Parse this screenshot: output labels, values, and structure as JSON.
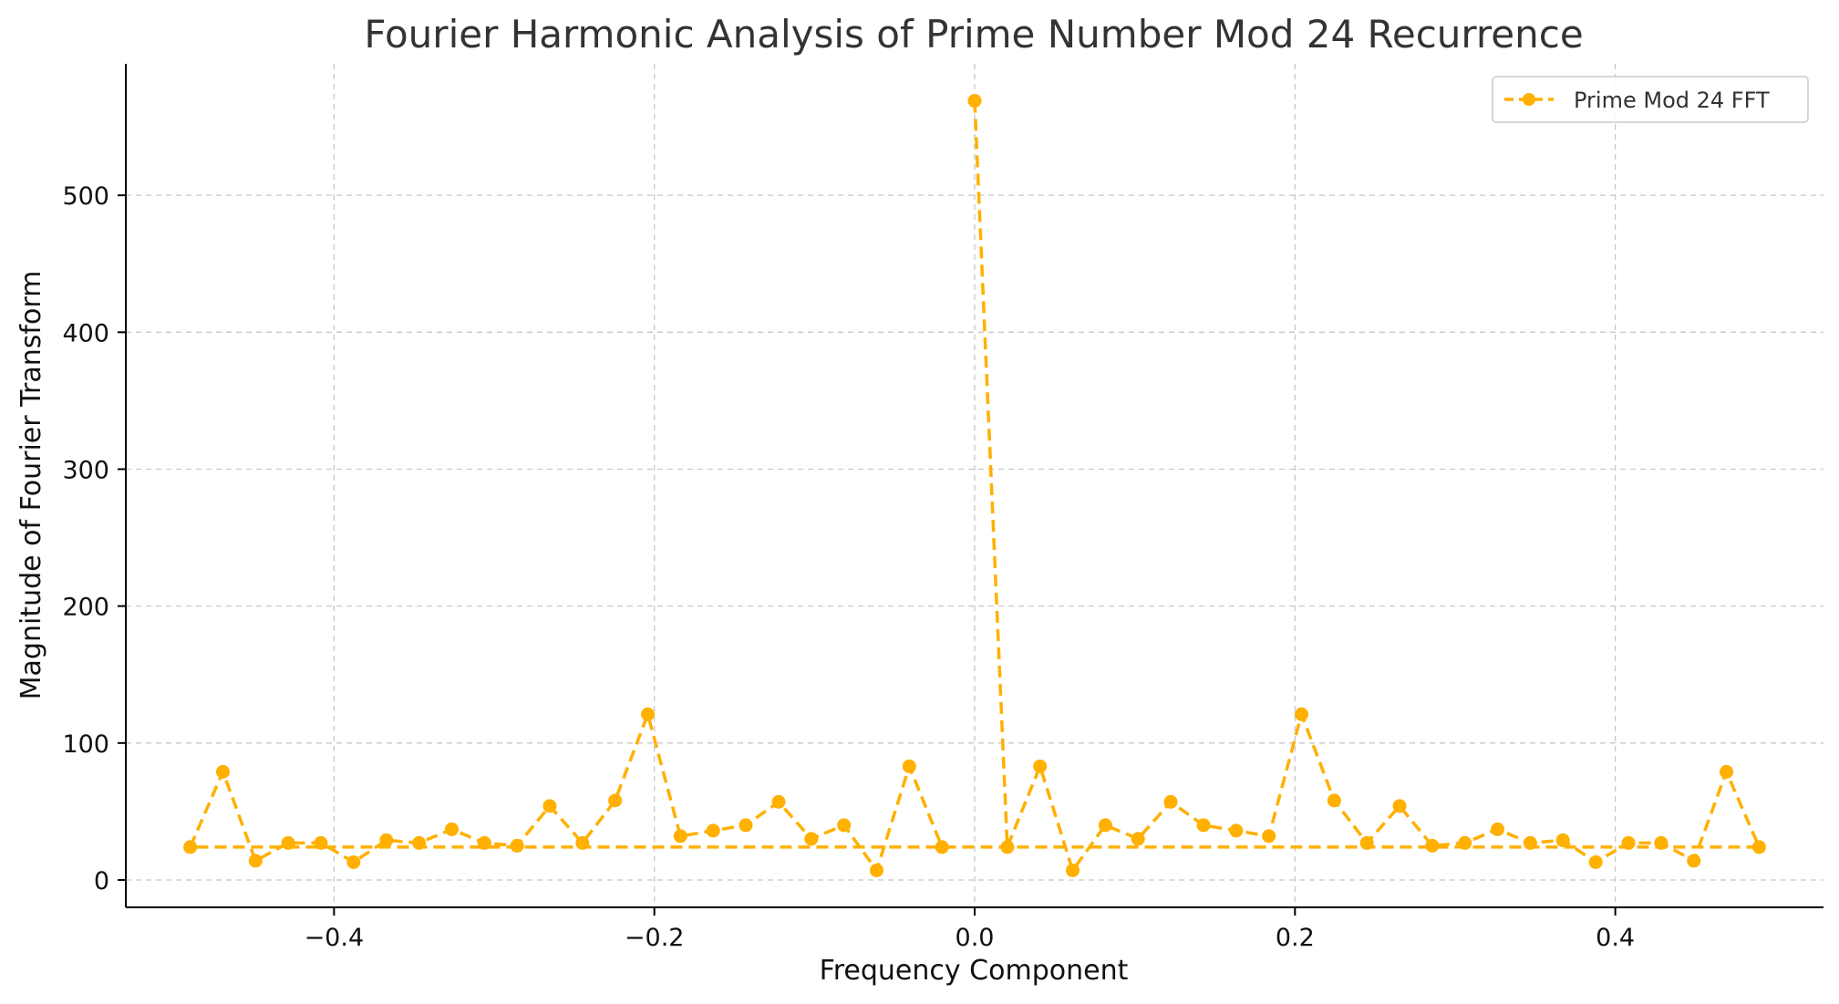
{
  "chart_data": {
    "type": "line",
    "title": "Fourier Harmonic Analysis of Prime Number Mod 24 Recurrence",
    "xlabel": "Frequency Component",
    "ylabel": "Magnitude of Fourier Transform",
    "xlim": [
      -0.53,
      0.53
    ],
    "ylim": [
      -20,
      596
    ],
    "xticks": [
      -0.4,
      -0.2,
      0.0,
      0.2,
      0.4
    ],
    "xtick_labels": [
      "−0.4",
      "−0.2",
      "0.0",
      "0.2",
      "0.4"
    ],
    "yticks": [
      0,
      100,
      200,
      300,
      400,
      500
    ],
    "ytick_labels": [
      "0",
      "100",
      "200",
      "300",
      "400",
      "500"
    ],
    "grid": true,
    "legend": "top-right",
    "colors": {
      "series": "#FFB000",
      "grid": "#c8c8c8",
      "axis": "#000000"
    },
    "series": [
      {
        "name": "Prime Mod 24 FFT",
        "style": "dashed-with-circle-markers",
        "x": [
          0.0,
          0.0204,
          0.0408,
          0.0612,
          0.0816,
          0.102,
          0.1224,
          0.1429,
          0.1633,
          0.1837,
          0.2041,
          0.2245,
          0.2449,
          0.2653,
          0.2857,
          0.3061,
          0.3265,
          0.3469,
          0.3673,
          0.3878,
          0.4082,
          0.4286,
          0.449,
          0.4694,
          0.4898,
          -0.4898,
          -0.4694,
          -0.449,
          -0.4286,
          -0.4082,
          -0.3878,
          -0.3673,
          -0.3469,
          -0.3265,
          -0.3061,
          -0.2857,
          -0.2653,
          -0.2449,
          -0.2245,
          -0.2041,
          -0.1837,
          -0.1633,
          -0.1429,
          -0.1224,
          -0.102,
          -0.0816,
          -0.0612,
          -0.0408,
          -0.0204
        ],
        "y": [
          569,
          24,
          83,
          7,
          40,
          30,
          57,
          40,
          36,
          32,
          121,
          58,
          27,
          54,
          25,
          27,
          37,
          27,
          29,
          13,
          27,
          27,
          14,
          79,
          24,
          24,
          79,
          14,
          27,
          27,
          13,
          29,
          27,
          37,
          27,
          25,
          54,
          27,
          58,
          121,
          32,
          36,
          40,
          57,
          30,
          40,
          7,
          83,
          24
        ]
      }
    ]
  }
}
